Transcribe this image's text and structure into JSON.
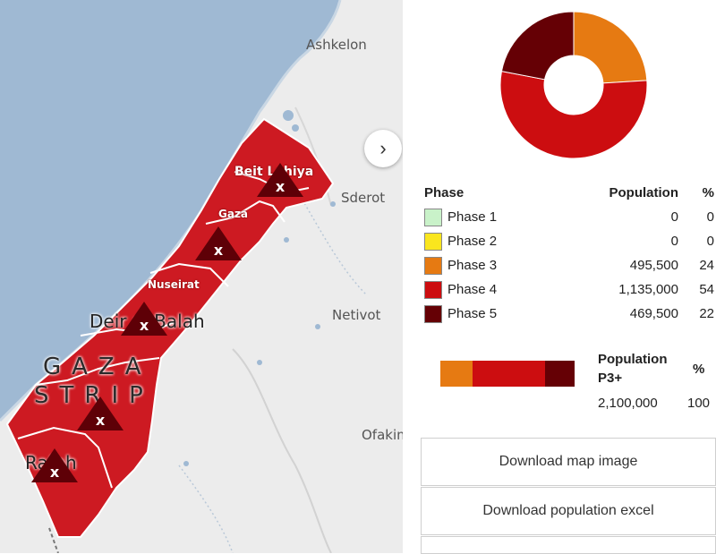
{
  "map": {
    "cities": {
      "ashkelon": "Ashkelon",
      "sderot": "Sderot",
      "netivot": "Netivot",
      "ofakim": "Ofakim"
    },
    "areas": {
      "beit_lahiya": "Beit Lahiya",
      "gaza": "Gaza",
      "nuseirat": "Nuseirat",
      "deir_al_balah": "Deir al-Balah",
      "rafah": "Rafah"
    },
    "strip_label": [
      "GAZA",
      "STRIP"
    ],
    "marker_symbol": "x",
    "next_icon": "›"
  },
  "chart_data": {
    "type": "pie",
    "categories": [
      "Phase 3",
      "Phase 4",
      "Phase 5"
    ],
    "values": [
      24,
      54,
      22
    ],
    "colors": [
      "#e67a12",
      "#cc0d10",
      "#650005"
    ]
  },
  "legend": {
    "headers": {
      "phase": "Phase",
      "population": "Population",
      "percent": "%"
    },
    "rows": [
      {
        "phase": "Phase 1",
        "population": "0",
        "percent": "0",
        "color": "#c9f2c9"
      },
      {
        "phase": "Phase 2",
        "population": "0",
        "percent": "0",
        "color": "#fae61e"
      },
      {
        "phase": "Phase 3",
        "population": "495,500",
        "percent": "24",
        "color": "#e67a12"
      },
      {
        "phase": "Phase 4",
        "population": "1,135,000",
        "percent": "54",
        "color": "#cc0d10"
      },
      {
        "phase": "Phase 5",
        "population": "469,500",
        "percent": "22",
        "color": "#650005"
      }
    ]
  },
  "p3plus": {
    "header_line1": "Population",
    "header_line2": "P3+",
    "percent_header": "%",
    "population": "2,100,000",
    "percent": "100",
    "shares": [
      {
        "value": 24,
        "color": "#e67a12"
      },
      {
        "value": 54,
        "color": "#cc0d10"
      },
      {
        "value": 22,
        "color": "#650005"
      }
    ]
  },
  "buttons": {
    "download_map": "Download map image",
    "download_excel": "Download population excel"
  }
}
